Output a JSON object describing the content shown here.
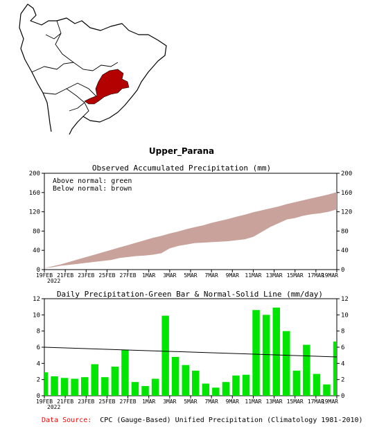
{
  "region_title": "Upper_Parana",
  "map": {
    "highlight_color": "#b30000"
  },
  "footer": {
    "label": "Data Source:",
    "text": "CPC (Gauge-Based) Unified Precipitation (Climatology 1981-2010)",
    "label_color": "#ff0000"
  },
  "chart_data": [
    {
      "type": "area",
      "title": "Observed Accumulated Precipitation (mm)",
      "annotations": [
        "Above normal: green",
        "Below normal: brown"
      ],
      "ylim": [
        0,
        200
      ],
      "yticks": [
        0,
        40,
        80,
        120,
        160,
        200
      ],
      "xticks": [
        "19FEB",
        "21FEB",
        "23FEB",
        "25FEB",
        "27FEB",
        "1MAR",
        "3MAR",
        "5MAR",
        "7MAR",
        "9MAR",
        "11MAR",
        "13MAR",
        "15MAR",
        "17MAR",
        "19MAR"
      ],
      "xtick_year": "2022",
      "grid": false,
      "colors": {
        "below": "#c9a39b",
        "above": "#00cc00"
      },
      "series": [
        {
          "values": [
            3,
            7,
            11,
            16,
            21,
            26,
            31,
            36,
            41,
            46,
            51,
            56,
            61,
            66,
            70,
            75,
            79,
            84,
            88,
            92,
            97,
            101,
            105,
            110,
            114,
            119,
            123,
            127,
            131,
            136,
            140,
            144,
            148,
            152,
            156,
            161
          ]
        },
        {
          "values": [
            3,
            5,
            8,
            10,
            12,
            14,
            16,
            18,
            20,
            24,
            26,
            28,
            29,
            31,
            34,
            44,
            49,
            52,
            55,
            56,
            57,
            58,
            59,
            61,
            63,
            68,
            78,
            88,
            96,
            104,
            107,
            112,
            115,
            117,
            120,
            125
          ]
        }
      ]
    },
    {
      "type": "bar",
      "title": "Daily Precipitation-Green Bar & Normal-Solid Line (mm/day)",
      "ylim": [
        0,
        12
      ],
      "yticks": [
        0,
        2,
        4,
        6,
        8,
        10,
        12
      ],
      "xticks": [
        "19FEB",
        "21FEB",
        "23FEB",
        "25FEB",
        "27FEB",
        "1MAR",
        "3MAR",
        "5MAR",
        "7MAR",
        "9MAR",
        "11MAR",
        "13MAR",
        "15MAR",
        "17MAR",
        "19MAR"
      ],
      "xtick_year": "2022",
      "grid": false,
      "colors": {
        "bar": "#00e600",
        "line": "#000000"
      },
      "series": [
        {
          "values": [
            2.9,
            2.4,
            2.2,
            2.1,
            2.3,
            3.9,
            2.3,
            3.6,
            5.7,
            1.7,
            1.2,
            2.1,
            9.9,
            4.8,
            3.8,
            3.1,
            1.5,
            1.0,
            1.7,
            2.5,
            2.6,
            10.6,
            10.0,
            10.9,
            8.0,
            3.1,
            6.3,
            2.7,
            1.4,
            6.7
          ]
        },
        {
          "values": [
            6.0,
            4.8
          ]
        }
      ]
    }
  ]
}
